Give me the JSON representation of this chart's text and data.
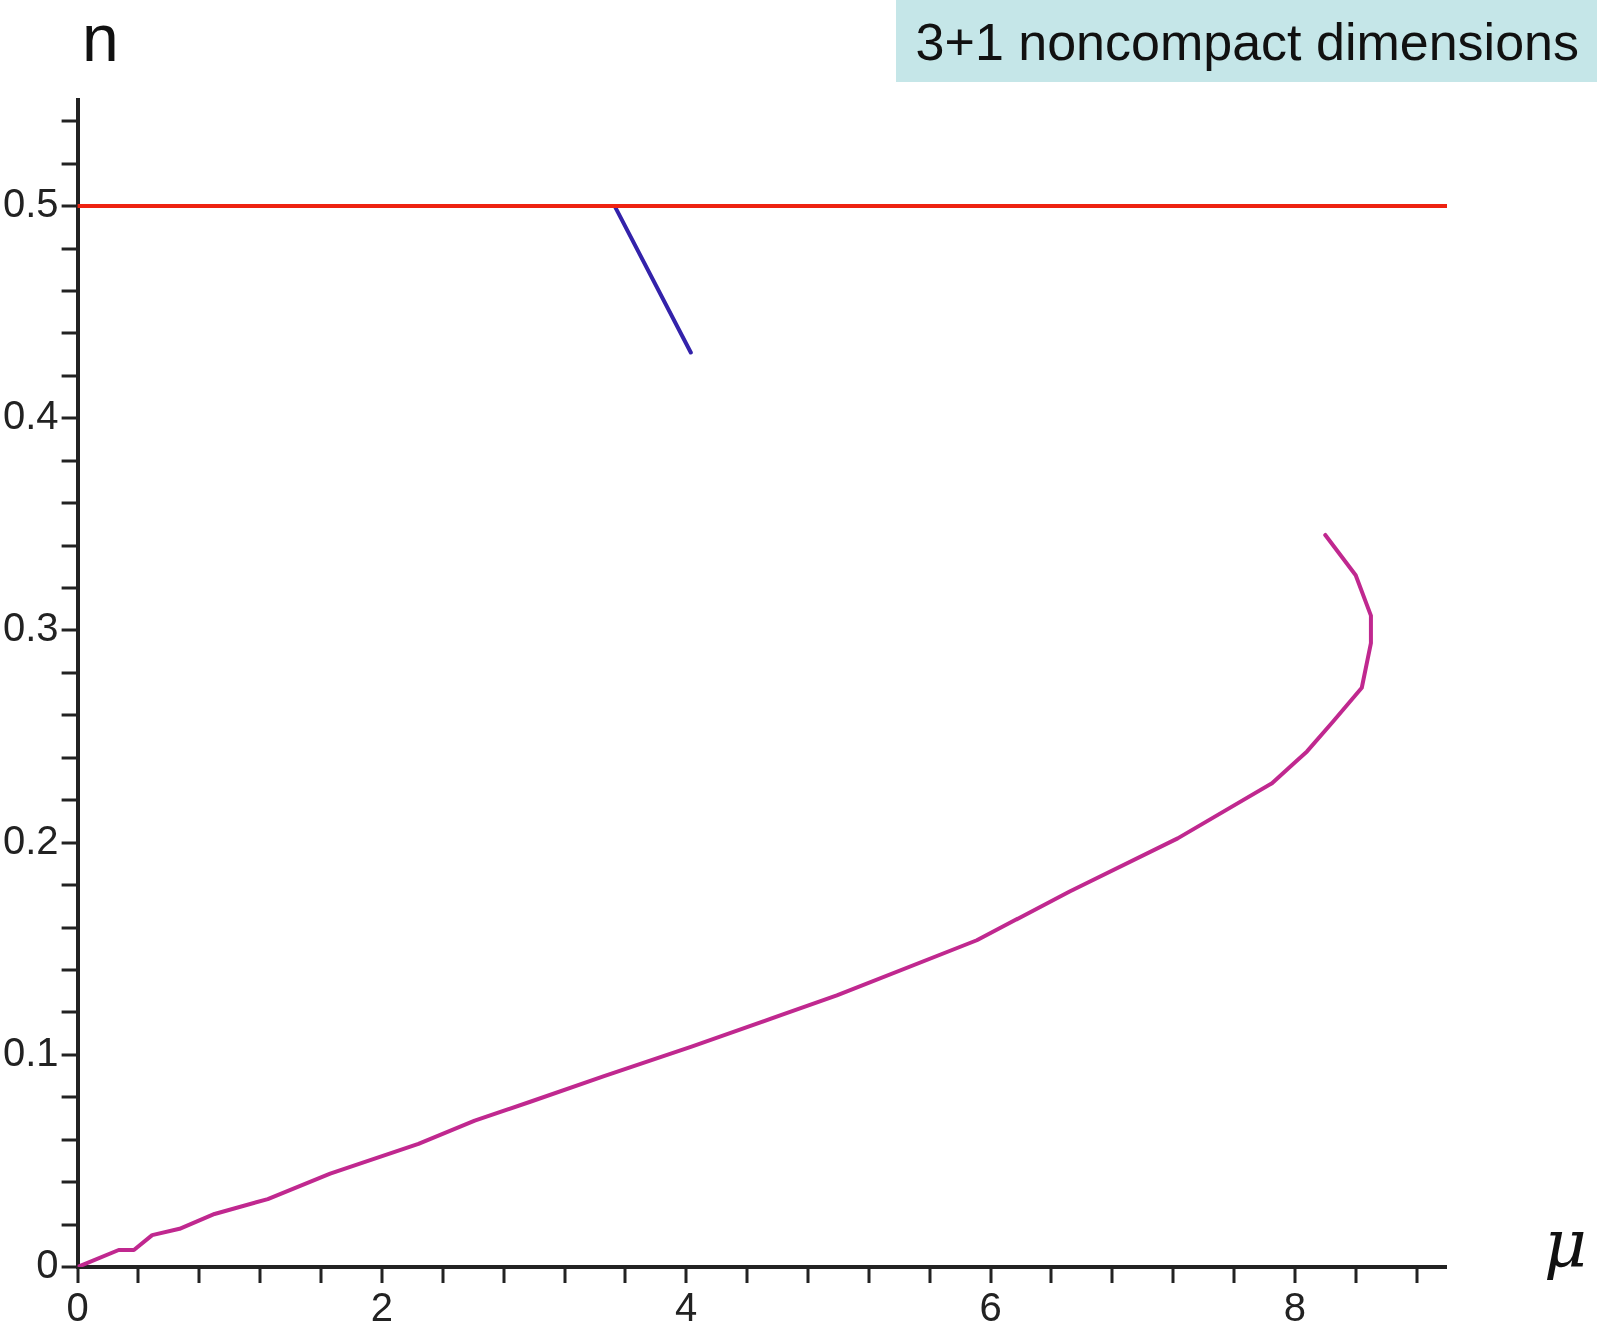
{
  "chart_data": {
    "type": "line",
    "title": "3+1 noncompact dimensions",
    "xlabel": "μ",
    "ylabel": "n",
    "xlim": [
      0,
      9
    ],
    "xticks": [
      0,
      {
        "value": 0.4,
        "label": null
      },
      {
        "value": 0.8,
        "label": null
      },
      {
        "value": 1.2,
        "label": null
      },
      {
        "value": 1.6,
        "label": null
      },
      2,
      {
        "value": 2.4,
        "label": null
      },
      {
        "value": 2.8,
        "label": null
      },
      {
        "value": 3.2,
        "label": null
      },
      {
        "value": 3.6,
        "label": null
      },
      4,
      {
        "value": 4.4,
        "label": null
      },
      {
        "value": 4.8,
        "label": null
      },
      {
        "value": 5.2,
        "label": null
      },
      {
        "value": 5.6,
        "label": null
      },
      6,
      {
        "value": 6.4,
        "label": null
      },
      {
        "value": 6.8,
        "label": null
      },
      {
        "value": 7.2,
        "label": null
      },
      {
        "value": 7.6,
        "label": null
      },
      8,
      {
        "value": 8.4,
        "label": null
      },
      {
        "value": 8.8,
        "label": null
      }
    ],
    "ylim": [
      0,
      0.55
    ],
    "yticks": [
      0,
      {
        "value": 0.02,
        "label": null
      },
      {
        "value": 0.04,
        "label": null
      },
      {
        "value": 0.06,
        "label": null
      },
      {
        "value": 0.08,
        "label": null
      },
      0.1,
      {
        "value": 0.12,
        "label": null
      },
      {
        "value": 0.14,
        "label": null
      },
      {
        "value": 0.16,
        "label": null
      },
      {
        "value": 0.18,
        "label": null
      },
      0.2,
      {
        "value": 0.22,
        "label": null
      },
      {
        "value": 0.24,
        "label": null
      },
      {
        "value": 0.26,
        "label": null
      },
      {
        "value": 0.28,
        "label": null
      },
      0.3,
      {
        "value": 0.32,
        "label": null
      },
      {
        "value": 0.34,
        "label": null
      },
      {
        "value": 0.36,
        "label": null
      },
      {
        "value": 0.38,
        "label": null
      },
      0.4,
      {
        "value": 0.42,
        "label": null
      },
      {
        "value": 0.44,
        "label": null
      },
      {
        "value": 0.46,
        "label": null
      },
      {
        "value": 0.48,
        "label": null
      },
      0.5,
      {
        "value": 0.52,
        "label": null
      },
      {
        "value": 0.54,
        "label": null
      }
    ],
    "grid": false,
    "legend": false,
    "marker": "none",
    "line_style": "solid",
    "series": [
      {
        "color": "#ee2211",
        "x": [
          0,
          9
        ],
        "values": [
          0.5,
          0.5
        ]
      },
      {
        "color": "#3322aa",
        "x": [
          3.53,
          4.03
        ],
        "values": [
          0.5,
          0.431
        ]
      },
      {
        "color": "#c0288f",
        "x": [
          0,
          0.27,
          0.37,
          0.49,
          0.67,
          0.9,
          1.25,
          1.66,
          2.24,
          2.61,
          2.98,
          3.46,
          4.04,
          4.99,
          5.91,
          6.52,
          7.23,
          7.85,
          8.08,
          8.25,
          8.44,
          8.5,
          8.5,
          8.4,
          8.2
        ],
        "values": [
          0,
          0.008,
          0.008,
          0.015,
          0.018,
          0.025,
          0.032,
          0.044,
          0.058,
          0.069,
          0.078,
          0.09,
          0.104,
          0.128,
          0.154,
          0.177,
          0.202,
          0.228,
          0.243,
          0.257,
          0.273,
          0.294,
          0.307,
          0.326,
          0.345
        ]
      }
    ]
  }
}
